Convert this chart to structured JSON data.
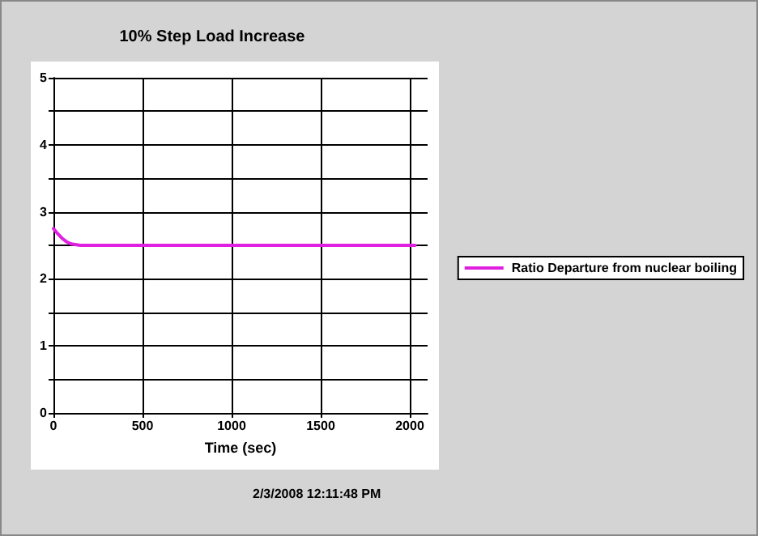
{
  "chart_data": {
    "type": "line",
    "title": "10% Step Load Increase",
    "xlabel": "Time (sec)",
    "x": [
      0,
      25,
      50,
      75,
      100,
      150,
      200,
      1000,
      2030
    ],
    "series": [
      {
        "name": "Ratio Departure from nuclear boiling",
        "color": "#e020e0",
        "values": [
          2.75,
          2.67,
          2.6,
          2.55,
          2.52,
          2.5,
          2.5,
          2.5,
          2.5
        ]
      }
    ],
    "xlim": [
      0,
      2100
    ],
    "xticks": [
      0,
      500,
      1000,
      1500,
      2000
    ],
    "ylim": [
      0,
      5
    ],
    "yticks": [
      0,
      {
        "value": 0.5,
        "label": null
      },
      1,
      {
        "value": 1.5,
        "label": null
      },
      2,
      {
        "value": 2.5,
        "label": null
      },
      3,
      {
        "value": 3.5,
        "label": null
      },
      4,
      {
        "value": 4.5,
        "label": null
      },
      5
    ],
    "grid": true,
    "legend": "right",
    "marker": "none",
    "line_style": "solid",
    "annotations": [
      "2/3/2008 12:11:48 PM"
    ]
  }
}
